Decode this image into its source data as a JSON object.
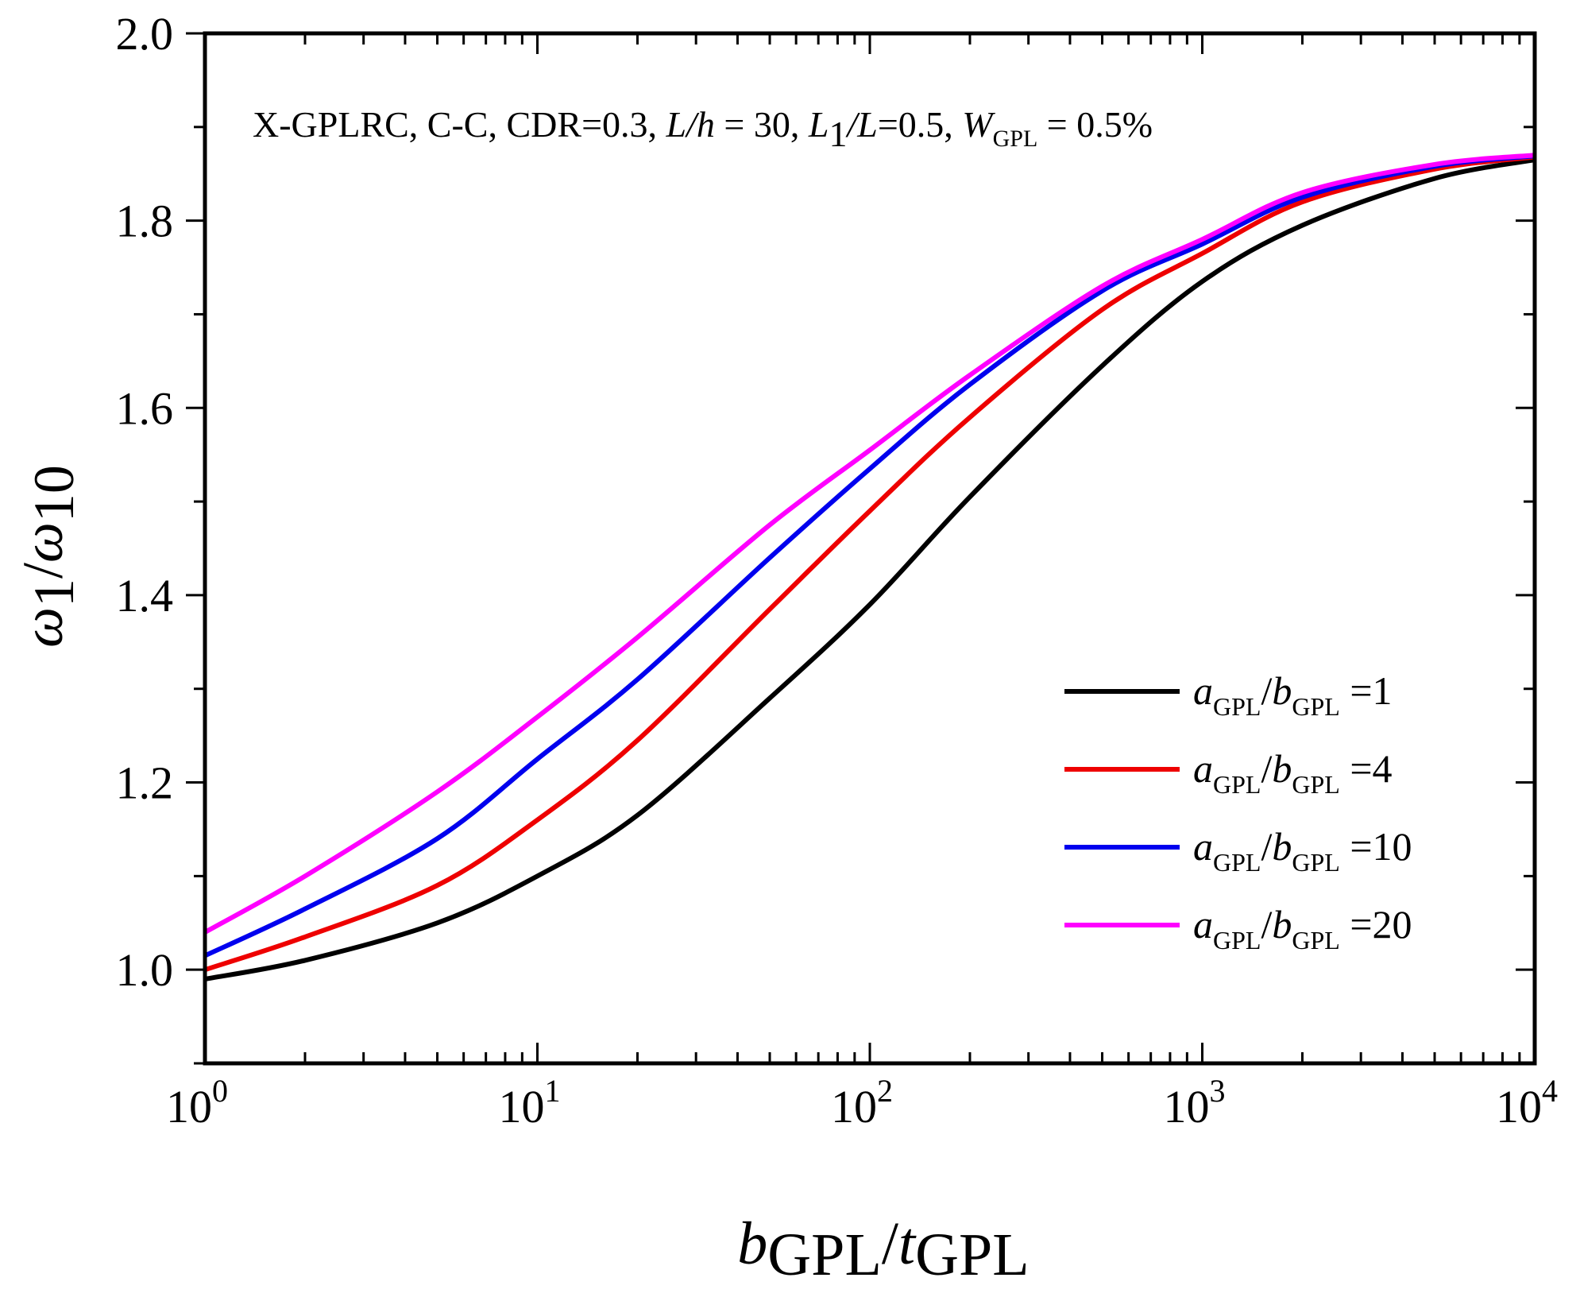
{
  "chart_data": {
    "type": "line",
    "x_scale": "log",
    "xlim": [
      1,
      10000
    ],
    "ylim": [
      0.9,
      2.0
    ],
    "x_ticks": [
      1,
      10,
      100,
      1000,
      10000
    ],
    "x_tick_labels": [
      {
        "base": "10",
        "exp": "0"
      },
      {
        "base": "10",
        "exp": "1"
      },
      {
        "base": "10",
        "exp": "2"
      },
      {
        "base": "10",
        "exp": "3"
      },
      {
        "base": "10",
        "exp": "4"
      }
    ],
    "y_ticks": [
      1.0,
      1.2,
      1.4,
      1.6,
      1.8,
      2.0
    ],
    "y_tick_labels": [
      "1.0",
      "1.2",
      "1.4",
      "1.6",
      "1.8",
      "2.0"
    ],
    "xlabel": {
      "a": "b",
      "a_sub": "GPL",
      "slash": "/",
      "b": "t",
      "b_sub": "GPL"
    },
    "ylabel": {
      "a": "ω",
      "a_sub": "1",
      "slash": "/",
      "b": "ω",
      "b_sub": "10"
    },
    "annotation": {
      "p1": "X-GPLRC, C-C, CDR=0.3, ",
      "p2": "L/h",
      "p3": " = 30, ",
      "p4": "L",
      "p5": "1",
      "p6": "/L",
      "p7": "=0.5, ",
      "p8": "W",
      "p9": "GPL",
      "p10": " = 0.5%"
    },
    "legend_position": "right",
    "x": [
      1,
      2,
      5,
      10,
      20,
      50,
      100,
      200,
      500,
      1000,
      2000,
      5000,
      10000
    ],
    "series": [
      {
        "name": "a_GPL/b_GPL =1",
        "label_a": "a",
        "label_sub1": "GPL",
        "label_slash": "/",
        "label_b": "b",
        "label_sub2": "GPL",
        "label_eq": "=1",
        "color": "#000000",
        "values": [
          0.99,
          1.01,
          1.05,
          1.1,
          1.165,
          1.29,
          1.39,
          1.505,
          1.645,
          1.735,
          1.795,
          1.845,
          1.865
        ]
      },
      {
        "name": "a_GPL/b_GPL =4",
        "label_a": "a",
        "label_sub1": "GPL",
        "label_slash": "/",
        "label_b": "b",
        "label_sub2": "GPL",
        "label_eq": "=4",
        "color": "#ee0000",
        "values": [
          1.0,
          1.035,
          1.09,
          1.16,
          1.245,
          1.385,
          1.49,
          1.59,
          1.705,
          1.765,
          1.82,
          1.855,
          1.868
        ]
      },
      {
        "name": "a_GPL/b_GPL =10",
        "label_a": "a",
        "label_sub1": "GPL",
        "label_slash": "/",
        "label_b": "b",
        "label_sub2": "GPL",
        "label_eq": "=10",
        "color": "#0000ee",
        "values": [
          1.015,
          1.065,
          1.14,
          1.225,
          1.31,
          1.44,
          1.535,
          1.625,
          1.725,
          1.775,
          1.825,
          1.858,
          1.869
        ]
      },
      {
        "name": "a_GPL/b_GPL =20",
        "label_a": "a",
        "label_sub1": "GPL",
        "label_slash": "/",
        "label_b": "b",
        "label_sub2": "GPL",
        "label_eq": "=20",
        "color": "#ff00ff",
        "values": [
          1.04,
          1.1,
          1.19,
          1.27,
          1.355,
          1.475,
          1.555,
          1.635,
          1.73,
          1.78,
          1.83,
          1.86,
          1.87
        ]
      }
    ]
  }
}
